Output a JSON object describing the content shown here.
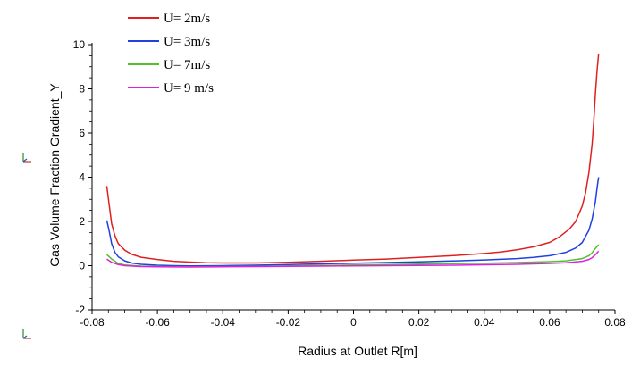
{
  "chart_data": {
    "type": "line",
    "xlabel": "Radius at Outlet R[m]",
    "ylabel": "Gas Volume Fraction Gradient_Y",
    "xlim": [
      -0.08,
      0.08
    ],
    "ylim": [
      -2,
      10
    ],
    "xticks": [
      "-0.08",
      "-0.06",
      "-0.04",
      "-0.02",
      "0",
      "0.02",
      "0.04",
      "0.06",
      "0.08"
    ],
    "yticks": [
      "-2",
      "0",
      "2",
      "4",
      "6",
      "8",
      "10"
    ],
    "grid": false,
    "legend": "top-left",
    "series": [
      {
        "name": "U= 2m/s",
        "color": "#e02020",
        "x": [
          -0.0755,
          -0.0748,
          -0.074,
          -0.073,
          -0.072,
          -0.07,
          -0.068,
          -0.065,
          -0.06,
          -0.055,
          -0.05,
          -0.045,
          -0.04,
          -0.03,
          -0.02,
          -0.01,
          0,
          0.01,
          0.02,
          0.03,
          0.04,
          0.045,
          0.05,
          0.055,
          0.06,
          0.063,
          0.066,
          0.068,
          0.07,
          0.071,
          0.072,
          0.073,
          0.0735,
          0.074,
          0.0745,
          0.075
        ],
        "values": [
          3.6,
          2.8,
          1.9,
          1.35,
          1.0,
          0.7,
          0.52,
          0.38,
          0.28,
          0.2,
          0.16,
          0.13,
          0.12,
          0.12,
          0.15,
          0.2,
          0.25,
          0.3,
          0.37,
          0.45,
          0.55,
          0.62,
          0.72,
          0.85,
          1.05,
          1.3,
          1.65,
          2.0,
          2.7,
          3.3,
          4.2,
          5.5,
          6.5,
          7.8,
          8.8,
          9.6
        ]
      },
      {
        "name": "U= 3m/s",
        "color": "#2040e0",
        "x": [
          -0.0755,
          -0.0748,
          -0.074,
          -0.073,
          -0.072,
          -0.07,
          -0.068,
          -0.065,
          -0.06,
          -0.055,
          -0.05,
          -0.04,
          -0.03,
          -0.02,
          -0.01,
          0,
          0.01,
          0.02,
          0.03,
          0.04,
          0.05,
          0.055,
          0.06,
          0.065,
          0.068,
          0.07,
          0.072,
          0.073,
          0.074,
          0.0745,
          0.075
        ],
        "values": [
          2.05,
          1.6,
          1.0,
          0.6,
          0.4,
          0.22,
          0.12,
          0.06,
          0.02,
          0.0,
          -0.01,
          0.0,
          0.02,
          0.05,
          0.08,
          0.11,
          0.14,
          0.17,
          0.21,
          0.26,
          0.32,
          0.37,
          0.45,
          0.6,
          0.8,
          1.05,
          1.6,
          2.1,
          2.9,
          3.5,
          4.0
        ]
      },
      {
        "name": "U= 7m/s",
        "color": "#50c030",
        "x": [
          -0.0755,
          -0.074,
          -0.072,
          -0.07,
          -0.065,
          -0.06,
          -0.05,
          -0.04,
          -0.03,
          -0.02,
          -0.01,
          0,
          0.01,
          0.02,
          0.03,
          0.04,
          0.05,
          0.06,
          0.065,
          0.07,
          0.072,
          0.073,
          0.074,
          0.075
        ],
        "values": [
          0.5,
          0.3,
          0.1,
          0.03,
          -0.02,
          -0.04,
          -0.05,
          -0.04,
          -0.03,
          -0.01,
          0.01,
          0.03,
          0.05,
          0.07,
          0.09,
          0.11,
          0.14,
          0.18,
          0.22,
          0.32,
          0.45,
          0.58,
          0.78,
          0.95
        ]
      },
      {
        "name": "U= 9 m/s",
        "color": "#e020e0",
        "x": [
          -0.0755,
          -0.074,
          -0.072,
          -0.07,
          -0.065,
          -0.06,
          -0.05,
          -0.04,
          -0.03,
          -0.02,
          -0.01,
          0,
          0.01,
          0.02,
          0.03,
          0.04,
          0.05,
          0.06,
          0.065,
          0.07,
          0.072,
          0.073,
          0.074,
          0.075
        ],
        "values": [
          0.3,
          0.15,
          0.05,
          0.0,
          -0.04,
          -0.05,
          -0.06,
          -0.05,
          -0.04,
          -0.03,
          -0.02,
          -0.01,
          0.0,
          0.01,
          0.02,
          0.04,
          0.06,
          0.1,
          0.13,
          0.2,
          0.28,
          0.36,
          0.5,
          0.65
        ]
      }
    ]
  },
  "icons": [
    "axis-triad-icon",
    "axis-triad-icon"
  ]
}
